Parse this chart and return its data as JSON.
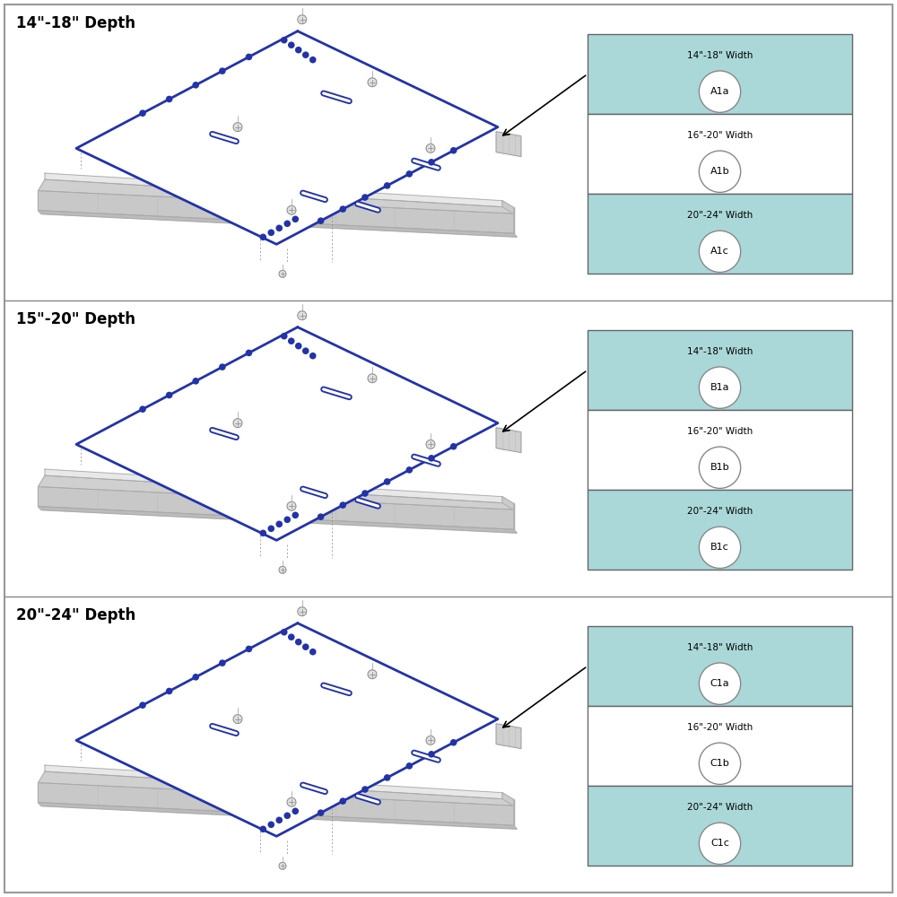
{
  "sections": [
    {
      "title": "14\"-18\" Depth",
      "parts": [
        {
          "label": "14\"-18\" Width",
          "code": "A1a",
          "teal": true
        },
        {
          "label": "16\"-20\" Width",
          "code": "A1b",
          "teal": false
        },
        {
          "label": "20\"-24\" Width",
          "code": "A1c",
          "teal": true
        }
      ]
    },
    {
      "title": "15\"-20\" Depth",
      "parts": [
        {
          "label": "14\"-18\" Width",
          "code": "B1a",
          "teal": true
        },
        {
          "label": "16\"-20\" Width",
          "code": "B1b",
          "teal": false
        },
        {
          "label": "20\"-24\" Width",
          "code": "B1c",
          "teal": true
        }
      ]
    },
    {
      "title": "20\"-24\" Depth",
      "parts": [
        {
          "label": "14\"-18\" Width",
          "code": "C1a",
          "teal": true
        },
        {
          "label": "16\"-20\" Width",
          "code": "C1b",
          "teal": false
        },
        {
          "label": "20\"-24\" Width",
          "code": "C1c",
          "teal": true
        }
      ]
    }
  ],
  "teal_color": "#aad8d8",
  "blue_outline": "#2233AA",
  "border_color": "#999999",
  "divider_color": "#888888",
  "bg_color": "#ffffff"
}
